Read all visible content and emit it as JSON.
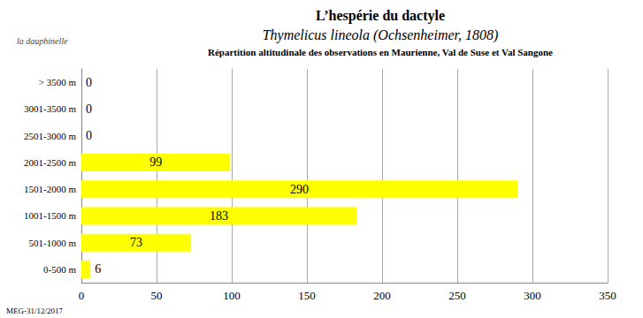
{
  "chart_data": {
    "type": "bar",
    "orientation": "horizontal",
    "title": "L’hespérie du dactyle",
    "subtitle": "Thymelicus lineola (Ochsenheimer, 1808)",
    "annotations": [
      "Répartition altitudinale des observations en Maurienne, Val de Suse et Val Sangone",
      "la dauphinelle",
      "MEG-31/12/2017"
    ],
    "categories": [
      "0-500 m",
      "501-1000 m",
      "1001-1500 m",
      "1501-2000 m",
      "2001-2500 m",
      "2501-3000 m",
      "3001-3500 m",
      "> 3500 m"
    ],
    "values": [
      6,
      73,
      183,
      290,
      99,
      0,
      0,
      0
    ],
    "color": "#ffff00",
    "xlim": [
      0,
      350
    ],
    "xticks": [
      0,
      50,
      100,
      150,
      200,
      250,
      300,
      350
    ],
    "grid": true,
    "data_labels": true
  }
}
